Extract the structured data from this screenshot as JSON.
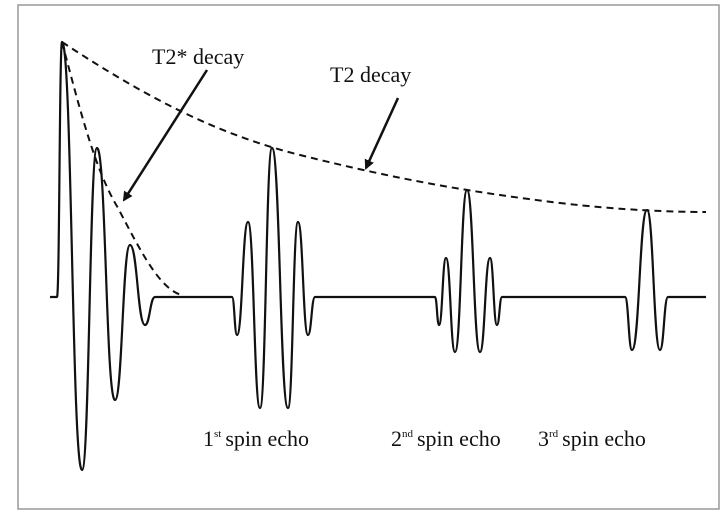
{
  "labels": {
    "t2_star": "T2* decay",
    "t2": "T2 decay"
  },
  "echoes": [
    {
      "ordinal": "1",
      "suffix": "st",
      "label": "spin echo"
    },
    {
      "ordinal": "2",
      "suffix": "nd",
      "label": "spin echo"
    },
    {
      "ordinal": "3",
      "suffix": "rd",
      "label": "spin echo"
    }
  ]
}
